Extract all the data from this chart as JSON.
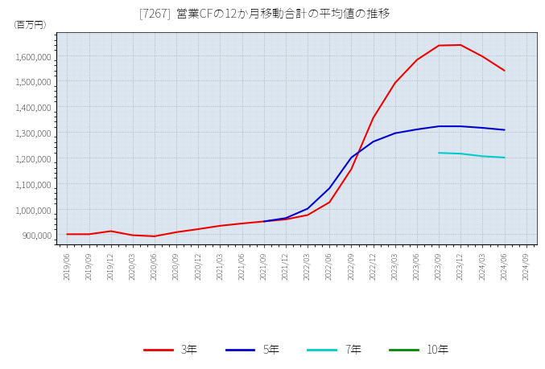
{
  "title": "[7267]  営業CFの12か月移動合計の平均値の推移",
  "ylabel": "（百万円）",
  "background_color": "#ffffff",
  "plot_bg_color": "#dce6f0",
  "ylim": [
    860000,
    1690000
  ],
  "yticks": [
    900000,
    1000000,
    1100000,
    1200000,
    1300000,
    1400000,
    1500000,
    1600000
  ],
  "series": {
    "3年": {
      "color": "#ee0000",
      "data_x": [
        "2019/06",
        "2019/09",
        "2019/12",
        "2020/03",
        "2020/06",
        "2020/09",
        "2020/12",
        "2021/03",
        "2021/06",
        "2021/09",
        "2021/12",
        "2022/03",
        "2022/06",
        "2022/09",
        "2022/12",
        "2023/03",
        "2023/06",
        "2023/09",
        "2023/12",
        "2024/03",
        "2024/06"
      ],
      "data_y": [
        900000,
        900000,
        912000,
        896000,
        892000,
        908000,
        920000,
        933000,
        942000,
        950000,
        958000,
        975000,
        1025000,
        1155000,
        1355000,
        1492000,
        1582000,
        1638000,
        1640000,
        1595000,
        1540000
      ]
    },
    "5年": {
      "color": "#0000cc",
      "data_x": [
        "2021/09",
        "2021/12",
        "2022/03",
        "2022/06",
        "2022/09",
        "2022/12",
        "2023/03",
        "2023/06",
        "2023/09",
        "2023/12",
        "2024/03",
        "2024/06"
      ],
      "data_y": [
        950000,
        963000,
        1000000,
        1080000,
        1200000,
        1262000,
        1295000,
        1310000,
        1322000,
        1322000,
        1316000,
        1308000
      ]
    },
    "7年": {
      "color": "#00cccc",
      "data_x": [
        "2023/09",
        "2023/12",
        "2024/03",
        "2024/06"
      ],
      "data_y": [
        1218000,
        1215000,
        1205000,
        1200000
      ]
    },
    "10年": {
      "color": "#008800",
      "data_x": [],
      "data_y": []
    }
  },
  "legend_labels": [
    "3年",
    "5年",
    "7年",
    "10年"
  ],
  "legend_colors": [
    "#ee0000",
    "#0000cc",
    "#00cccc",
    "#008800"
  ],
  "xtick_labels": [
    "2019/06",
    "2019/09",
    "2019/12",
    "2020/03",
    "2020/06",
    "2020/09",
    "2020/12",
    "2021/03",
    "2021/06",
    "2021/09",
    "2021/12",
    "2022/03",
    "2022/06",
    "2022/09",
    "2022/12",
    "2023/03",
    "2023/06",
    "2023/09",
    "2023/12",
    "2024/03",
    "2024/06",
    "2024/09"
  ]
}
